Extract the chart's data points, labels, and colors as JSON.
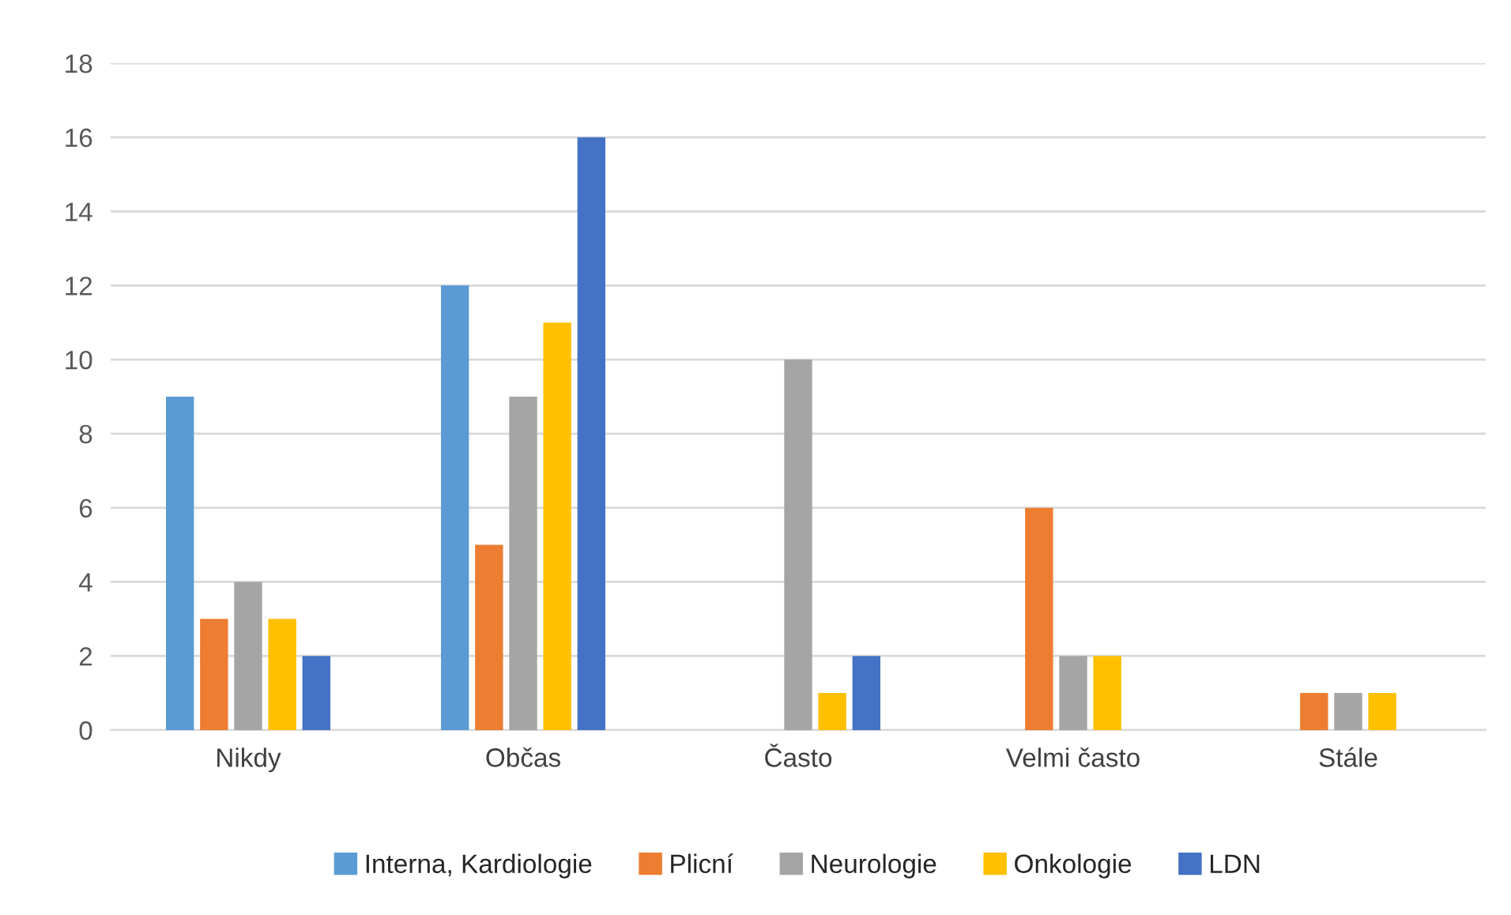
{
  "chart_data": {
    "type": "bar",
    "categories": [
      "Nikdy",
      "Občas",
      "Často",
      "Velmi často",
      "Stále"
    ],
    "series": [
      {
        "name": "Interna, Kardiologie",
        "color": "#5b9bd5",
        "values": [
          9,
          12,
          null,
          null,
          null
        ]
      },
      {
        "name": "Plicní",
        "color": "#ed7d31",
        "values": [
          3,
          5,
          null,
          6,
          1
        ]
      },
      {
        "name": "Neurologie",
        "color": "#a5a5a5",
        "values": [
          4,
          9,
          10,
          2,
          1
        ]
      },
      {
        "name": "Onkologie",
        "color": "#ffc000",
        "values": [
          3,
          11,
          1,
          2,
          1
        ]
      },
      {
        "name": "LDN",
        "color": "#4472c4",
        "values": [
          2,
          16,
          2,
          null,
          null
        ]
      }
    ],
    "ylim": [
      0,
      18
    ],
    "yticks": [
      0,
      2,
      4,
      6,
      8,
      10,
      12,
      14,
      16,
      18
    ],
    "grid": "y",
    "legend": "bottom"
  }
}
